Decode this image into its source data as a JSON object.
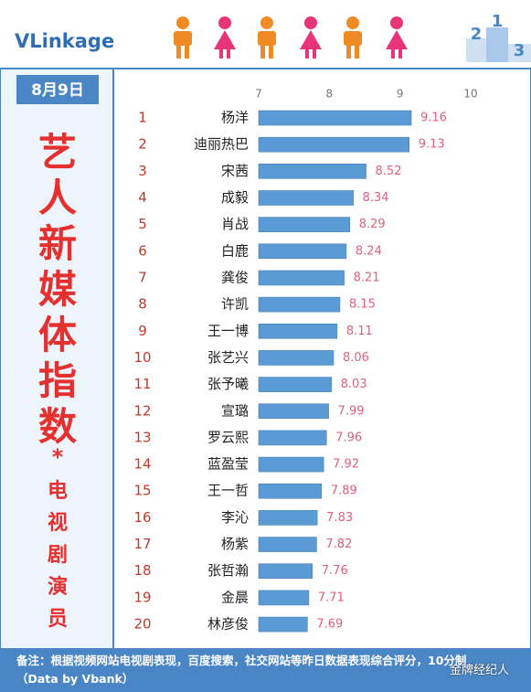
{
  "header": {
    "logo": "VLinkage",
    "podium": [
      "2",
      "1",
      "3"
    ]
  },
  "panel": {
    "date": "8月9日",
    "title": "艺人新媒体指数",
    "asterisk": "*",
    "subtitle": "电视剧演员"
  },
  "chart_data": {
    "type": "bar",
    "orientation": "horizontal",
    "ranks": [
      "1",
      "2",
      "3",
      "4",
      "5",
      "6",
      "7",
      "8",
      "9",
      "10",
      "11",
      "12",
      "13",
      "14",
      "15",
      "16",
      "17",
      "18",
      "19",
      "20"
    ],
    "categories": [
      "杨洋",
      "迪丽热巴",
      "宋茜",
      "成毅",
      "肖战",
      "白鹿",
      "龚俊",
      "许凯",
      "王一博",
      "张艺兴",
      "张予曦",
      "宣璐",
      "罗云熙",
      "蓝盈莹",
      "王一哲",
      "李沁",
      "杨紫",
      "张哲瀚",
      "金晨",
      "林彦俊"
    ],
    "values": [
      9.16,
      9.13,
      8.52,
      8.34,
      8.29,
      8.24,
      8.21,
      8.15,
      8.11,
      8.06,
      8.03,
      7.99,
      7.96,
      7.92,
      7.89,
      7.83,
      7.82,
      7.76,
      7.71,
      7.69
    ],
    "color": "#5b9bd5",
    "label_color": "#e0607e",
    "xlim": [
      7,
      10
    ],
    "xticks": [
      7,
      8,
      9,
      10
    ]
  },
  "footer": {
    "note": "备注：根据视频网站电视剧表现，百度搜索，社交网站等昨日数据表现综合评分，10分制（Data by Vbank）",
    "watermark": "金牌经纪人"
  }
}
